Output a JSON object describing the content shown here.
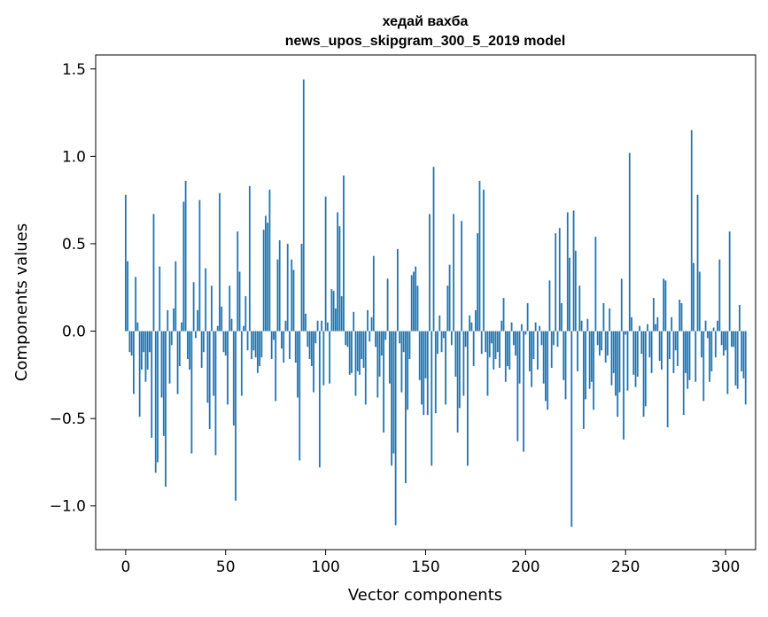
{
  "chart_data": {
    "type": "bar",
    "title": "хедай вахба",
    "subtitle": "news_upos_skipgram_300_5_2019 model",
    "xlabel": "Vector components",
    "ylabel": "Components values",
    "xlim": [
      -15,
      315
    ],
    "ylim": [
      -1.25,
      1.58
    ],
    "xticks": [
      0,
      50,
      100,
      150,
      200,
      250,
      300
    ],
    "yticks": [
      -1.0,
      -0.5,
      0.0,
      0.5,
      1.0,
      1.5
    ],
    "ytick_labels": [
      "−1.0",
      "−0.5",
      "0.0",
      "0.5",
      "1.0",
      "1.5"
    ],
    "bar_color": "#1f77b4",
    "grid": false,
    "values": [
      0.78,
      0.4,
      -0.12,
      -0.14,
      -0.36,
      0.31,
      0.05,
      -0.49,
      -0.22,
      -0.12,
      -0.29,
      -0.22,
      -0.12,
      -0.61,
      0.67,
      -0.81,
      -0.75,
      0.37,
      -0.38,
      -0.6,
      -0.89,
      0.12,
      -0.3,
      -0.08,
      0.13,
      0.4,
      -0.36,
      -0.2,
      0.05,
      0.74,
      0.86,
      -0.16,
      -0.22,
      -0.7,
      0.28,
      -0.04,
      0.12,
      0.75,
      -0.21,
      -0.12,
      0.36,
      -0.41,
      -0.56,
      0.26,
      -0.37,
      -0.71,
      0.03,
      0.79,
      0.14,
      -0.12,
      -0.14,
      -0.42,
      0.26,
      0.07,
      -0.54,
      -0.97,
      0.57,
      0.34,
      -0.37,
      0.03,
      0.2,
      -0.11,
      0.83,
      -0.16,
      -0.11,
      -0.15,
      -0.24,
      -0.2,
      -0.15,
      0.58,
      0.66,
      0.62,
      0.81,
      -0.16,
      -0.05,
      -0.4,
      0.41,
      0.52,
      -0.1,
      -0.18,
      0.06,
      0.5,
      -0.16,
      0.41,
      0.35,
      -0.18,
      -0.38,
      -0.74,
      0.5,
      1.44,
      0.1,
      -0.09,
      -0.16,
      -0.2,
      -0.35,
      -0.07,
      0.06,
      -0.78,
      0.06,
      -0.31,
      0.77,
      0.05,
      -0.3,
      0.24,
      0.23,
      0.13,
      0.68,
      0.6,
      0.2,
      0.89,
      -0.08,
      -0.09,
      -0.25,
      -0.24,
      0.11,
      -0.37,
      -0.23,
      -0.25,
      -0.16,
      -0.21,
      -0.42,
      0.12,
      -0.06,
      0.08,
      0.43,
      -0.09,
      -0.38,
      -0.26,
      -0.14,
      -0.58,
      -0.05,
      0.3,
      -0.3,
      -0.77,
      -0.7,
      -1.11,
      0.47,
      -0.07,
      -0.35,
      -0.12,
      -0.87,
      -0.45,
      -0.16,
      0.32,
      0.34,
      0.37,
      0.26,
      -0.28,
      -0.42,
      -0.48,
      -0.27,
      -0.48,
      0.67,
      -0.77,
      0.94,
      -0.47,
      -0.13,
      0.09,
      -0.12,
      -0.04,
      -0.42,
      0.26,
      0.38,
      -0.08,
      0.67,
      -0.26,
      -0.58,
      -0.44,
      0.63,
      -0.37,
      -0.09,
      -0.77,
      0.09,
      0.05,
      -0.2,
      0.12,
      0.56,
      0.86,
      -0.13,
      0.81,
      -0.12,
      -0.37,
      -0.15,
      -0.07,
      -0.22,
      -0.16,
      -0.12,
      -0.21,
      0.06,
      0.19,
      -0.29,
      -0.2,
      -0.22,
      0.05,
      -0.08,
      -0.14,
      -0.63,
      -0.3,
      0.04,
      -0.69,
      -0.02,
      0.16,
      -0.23,
      -0.32,
      -0.16,
      0.05,
      -0.22,
      0.03,
      -0.08,
      -0.3,
      -0.4,
      -0.45,
      0.29,
      -0.21,
      -0.08,
      0.56,
      -0.09,
      0.59,
      0.16,
      -0.28,
      -0.39,
      0.68,
      0.42,
      -1.12,
      0.69,
      0.46,
      -0.23,
      0.26,
      0.06,
      -0.56,
      -0.39,
      0.07,
      -0.33,
      -0.29,
      -0.45,
      0.54,
      -0.08,
      -0.14,
      -0.11,
      0.16,
      -0.18,
      -0.14,
      0.13,
      -0.31,
      -0.24,
      -0.37,
      -0.49,
      -0.35,
      0.3,
      -0.62,
      -0.02,
      -0.34,
      1.02,
      0.08,
      -0.25,
      -0.32,
      -0.26,
      0.03,
      -0.13,
      -0.49,
      -0.43,
      0.04,
      -0.15,
      -0.24,
      0.19,
      0.04,
      0.08,
      -0.17,
      -0.22,
      0.3,
      0.29,
      -0.55,
      -0.16,
      0.08,
      -0.24,
      -0.11,
      -0.2,
      0.18,
      0.16,
      -0.48,
      -0.24,
      -0.33,
      -0.28,
      1.15,
      0.39,
      -0.29,
      0.78,
      0.34,
      -0.15,
      -0.4,
      0.06,
      -0.04,
      -0.29,
      -0.23,
      0.02,
      -0.15,
      0.06,
      0.41,
      -0.08,
      -0.14,
      -0.11,
      -0.36,
      0.57,
      -0.09,
      -0.09,
      -0.31,
      -0.33,
      0.15,
      -0.23,
      -0.27,
      -0.42
    ]
  }
}
